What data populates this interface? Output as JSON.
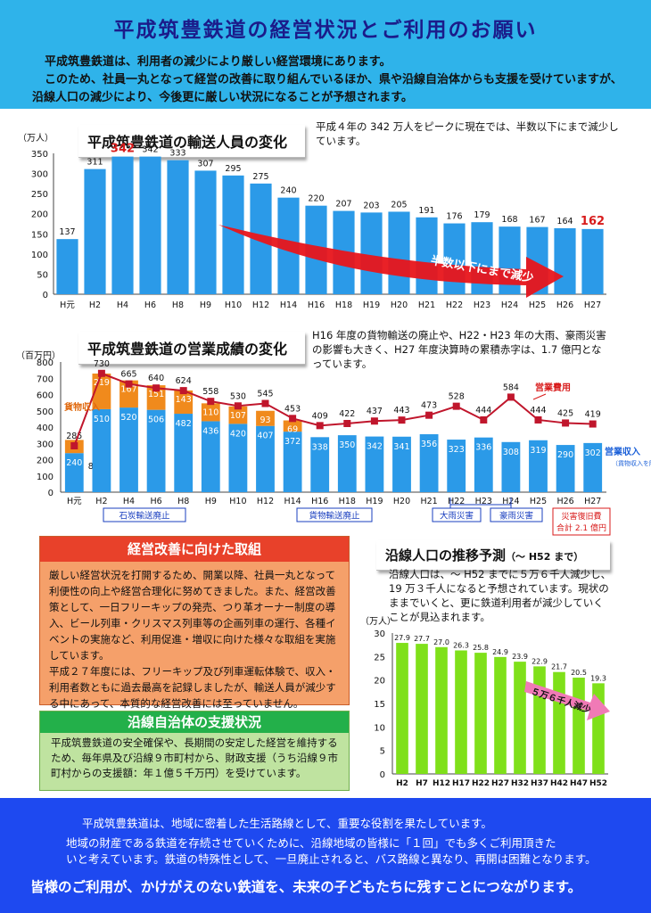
{
  "header": {
    "title": "平成筑豊鉄道の経営状況とご利用のお願い",
    "line1": "平成筑豊鉄道は、利用者の減少により厳しい経営環境にあります。",
    "line2": "このため、社員一丸となって経営の改善に取り組んでいるほか、県や沿線自治体からも支援を受けていますが、",
    "line3": "沿線人口の減少により、今後更に厳しい状況になることが予想されます。"
  },
  "ridership": {
    "title": "平成筑豊鉄道の輸送人員の変化",
    "note": "平成４年の 342 万人をピークに現在では、半数以下にまで減少しています。",
    "unit": "（万人）",
    "arrow_text": "半数以下にまで減少"
  },
  "finance": {
    "title": "平成筑豊鉄道の営業成績の変化",
    "note": "H16 年度の貨物輸送の廃止や、H22・H23 年の大雨、豪雨災害の影響も大きく、H27 年度決算時の累積赤字は、1.7 億円となっています。",
    "unit": "（百万円）",
    "legend_cost": "営業費用",
    "legend_freight": "貨物収入",
    "legend_revenue": "営業収入",
    "legend_revenue_sub": "（貨物収入を除く）",
    "events": [
      "石炭輸送廃止",
      "貨物輸送廃止",
      "大雨災害",
      "豪雨災害"
    ],
    "disaster_cost_line1": "災害復旧費",
    "disaster_cost_line2": "合計 2.1 億円"
  },
  "improve": {
    "title": "経営改善に向けた取組",
    "body1": "厳しい経営状況を打開するため、開業以降、社員一丸となって利便性の向上や経営合理化に努めてきました。また、経営改善策として、一日フリーキップの発売、つり革オーナー制度の導入、ビール列車・クリスマス列車等の企画列車の運行、各種イベントの実施など、利用促進・増収に向けた様々な取組を実施しています。",
    "body2": "平成２７年度には、フリーキップ及び列車運転体験で、収入・利用者数ともに過去最高を記録しましたが、輸送人員が減少する中にあって、本質的な経営改善には至っていません。"
  },
  "support": {
    "title": "沿線自治体の支援状況",
    "body": "平成筑豊鉄道の安全確保や、長期間の安定した経営を維持するため、毎年県及び沿線９市町村から、財政支援（うち沿線９市町村からの支援額：年１億５千万円）を受けています。"
  },
  "population": {
    "title": "沿線人口の推移予測",
    "title_suffix": "（～ H52 まで）",
    "note": "沿線人口は、～ H52 までに５万６千人減少し、19 万３千人になると予想されています。現状のままでいくと、更に鉄道利用者が減少していくことが見込まれます。",
    "unit": "（万人）",
    "arrow_text": "５万６千人減少"
  },
  "footer": {
    "line1": "平成筑豊鉄道は、地域に密着した生活路線として、重要な役割を果たしています。",
    "line2": "地域の財産である鉄道を存続させていくために、沿線地域の皆様に「１回」でも多くご利用頂きた",
    "line3": "いと考えています。鉄道の特殊性として、一旦廃止されると、バス路線と異なり、再開は困難となります。",
    "line4": "皆様のご利用が、かけがえのない鉄道を、未来の子どもたちに残すことにつながります。"
  },
  "colors": {
    "header_bg": "#2fb3ea",
    "ridership_bar": "#2b9ae8",
    "revenue_bar": "#2b9ae8",
    "freight_bar": "#f08a1c",
    "cost_line": "#c0162c",
    "population_bar": "#7fe01a",
    "improve_header": "#e8412a",
    "improve_body": "#f5a06a",
    "support_header": "#23b04a",
    "support_body": "#bfe3a0",
    "footer_bg": "#1e49f0"
  },
  "chart_data": [
    {
      "type": "bar",
      "title": "平成筑豊鉄道の輸送人員の変化",
      "ylabel": "（万人）",
      "categories": [
        "H元",
        "H2",
        "H4",
        "H6",
        "H8",
        "H9",
        "H10",
        "H12",
        "H14",
        "H16",
        "H18",
        "H19",
        "H20",
        "H21",
        "H22",
        "H23",
        "H24",
        "H25",
        "H26",
        "H27"
      ],
      "values": [
        137,
        311,
        342,
        342,
        333,
        307,
        295,
        275,
        240,
        220,
        207,
        203,
        205,
        191,
        176,
        179,
        168,
        167,
        164,
        162
      ],
      "ylim": [
        0,
        350
      ],
      "yticks": [
        0,
        50,
        100,
        150,
        200,
        250,
        300,
        350
      ],
      "grid": false
    },
    {
      "type": "bar",
      "title": "平成筑豊鉄道の営業成績の変化",
      "ylabel": "（百万円）",
      "categories": [
        "H元",
        "H2",
        "H4",
        "H6",
        "H8",
        "H9",
        "H10",
        "H12",
        "H14",
        "H16",
        "H18",
        "H19",
        "H20",
        "H21",
        "H22",
        "H23",
        "H24",
        "H25",
        "H26",
        "H27"
      ],
      "ylim": [
        0,
        800
      ],
      "yticks": [
        0,
        100,
        200,
        300,
        400,
        500,
        600,
        700,
        800
      ],
      "series": [
        {
          "name": "営業収入",
          "values": [
            240,
            510,
            520,
            506,
            482,
            436,
            420,
            407,
            372,
            338,
            350,
            342,
            341,
            356,
            323,
            336,
            308,
            319,
            290,
            302
          ]
        },
        {
          "name": "貨物収入",
          "values": [
            81,
            219,
            167,
            151,
            143,
            110,
            107,
            93,
            69,
            null,
            null,
            null,
            null,
            null,
            null,
            null,
            null,
            null,
            null,
            null
          ]
        },
        {
          "name": "営業費用",
          "values": [
            285,
            730,
            665,
            640,
            624,
            558,
            530,
            545,
            453,
            409,
            422,
            437,
            443,
            473,
            528,
            444,
            584,
            444,
            425,
            419
          ]
        }
      ]
    },
    {
      "type": "bar",
      "title": "沿線人口の推移予測",
      "ylabel": "（万人）",
      "categories": [
        "H2",
        "H7",
        "H12",
        "H17",
        "H22",
        "H27",
        "H32",
        "H37",
        "H42",
        "H47",
        "H52"
      ],
      "values": [
        27.9,
        27.7,
        27.0,
        26.3,
        25.8,
        24.9,
        23.9,
        22.9,
        21.7,
        20.5,
        19.3
      ],
      "ylim": [
        0,
        30
      ],
      "yticks": [
        0,
        5,
        10,
        15,
        20,
        25,
        30
      ],
      "grid": false
    }
  ]
}
